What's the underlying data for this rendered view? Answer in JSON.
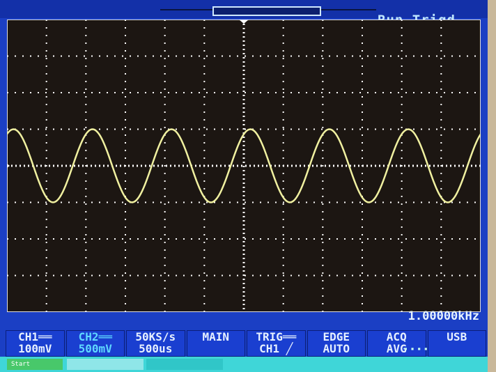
{
  "header": {
    "status": "Run Trigd"
  },
  "display": {
    "divisions_x": 12,
    "divisions_y": 8,
    "trace_color": "#f0f0a0",
    "grid_color": "#ffffff",
    "background": "#1c1612",
    "waveform": {
      "shape": "sine",
      "frequency_hz": 1000,
      "amplitude_div": 1.0,
      "phase_deg": 60
    }
  },
  "frequency_readout": "1.00000kHz",
  "softkeys": [
    {
      "line1": "CH1══",
      "line2": "100mV"
    },
    {
      "line1": "CH2══",
      "line2": "500mV"
    },
    {
      "line1": "50KS/s",
      "line2": "500us"
    },
    {
      "line1": "MAIN",
      "line2": ""
    },
    {
      "line1": "TRIG══",
      "line2": "CH1 ╱"
    },
    {
      "line1": "EDGE",
      "line2": "AUTO"
    },
    {
      "line1": "ACQ",
      "line2": "AVG"
    },
    {
      "line1": "USB",
      "line2": ""
    }
  ],
  "taskbar": {
    "start": "Start",
    "task1": "",
    "task2": ""
  }
}
